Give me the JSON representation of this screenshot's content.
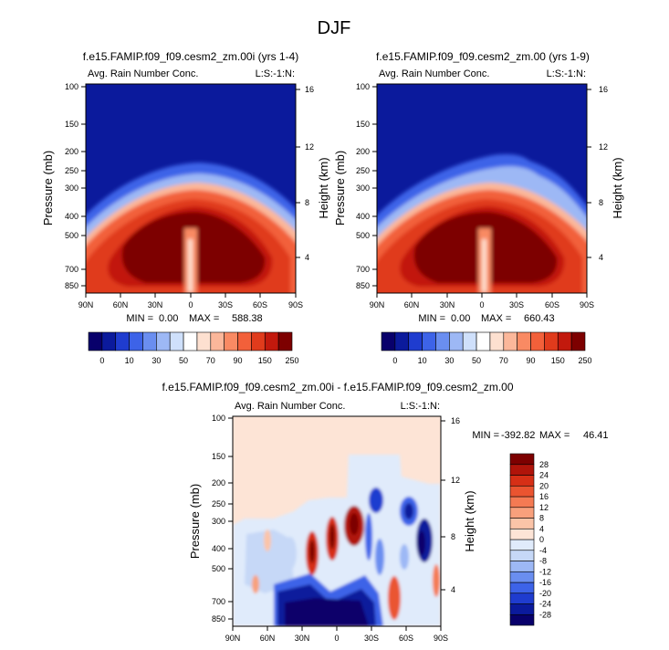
{
  "figure_title": "DJF",
  "colors": {
    "seq_scale": [
      "#08006b",
      "#0b1a9c",
      "#1f3ccf",
      "#3d63e8",
      "#6a8ef0",
      "#9db8f5",
      "#cfe0fb",
      "#ffffff",
      "#fde0d0",
      "#fbb79a",
      "#f98a63",
      "#f2603a",
      "#e03b1c",
      "#c2190d",
      "#7d0000"
    ],
    "diff_scale": [
      "#08006b",
      "#0b1a9c",
      "#1f3ccf",
      "#3d63e8",
      "#6a8ef0",
      "#9db8f5",
      "#c6d8f7",
      "#e0ebfb",
      "#fde4d6",
      "#fbc4a8",
      "#f8a07c",
      "#f47a53",
      "#ea5430",
      "#d62f16",
      "#b0140a",
      "#7d0000"
    ]
  },
  "chart_data": [
    {
      "type": "heatmap",
      "title": "f.e15.FAMIP.f09_f09.cesm2_zm.00i (yrs 1-4)",
      "left_label": "Avg. Rain Number Conc.",
      "right_label": "L:S:-1:N:",
      "ylabel": "Pressure (mb)",
      "ylabel_right": "Height (km)",
      "x_ticks": [
        "90N",
        "60N",
        "30N",
        "0",
        "30S",
        "60S",
        "90S"
      ],
      "y_ticks": [
        "100",
        "150",
        "200",
        "250",
        "300",
        "400",
        "500",
        "700",
        "850"
      ],
      "y_ticks_right": [
        "16",
        "12",
        "8",
        "4"
      ],
      "min_label": "MIN =",
      "min_value": "0.00",
      "max_label": "MAX =",
      "max_value": "588.38",
      "colorbar_labels": [
        "0",
        "10",
        "30",
        "50",
        "70",
        "90",
        "150",
        "250"
      ]
    },
    {
      "type": "heatmap",
      "title": "f.e15.FAMIP.f09_f09.cesm2_zm.00 (yrs 1-9)",
      "left_label": "Avg. Rain Number Conc.",
      "right_label": "L:S:-1:N:",
      "ylabel": "Pressure (mb)",
      "ylabel_right": "Height (km)",
      "x_ticks": [
        "90N",
        "60N",
        "30N",
        "0",
        "30S",
        "60S",
        "90S"
      ],
      "y_ticks": [
        "100",
        "150",
        "200",
        "250",
        "300",
        "400",
        "500",
        "700",
        "850"
      ],
      "y_ticks_right": [
        "16",
        "12",
        "8",
        "4"
      ],
      "min_label": "MIN =",
      "min_value": "0.00",
      "max_label": "MAX =",
      "max_value": "660.43",
      "colorbar_labels": [
        "0",
        "10",
        "30",
        "50",
        "70",
        "90",
        "150",
        "250"
      ]
    },
    {
      "type": "heatmap",
      "title": "f.e15.FAMIP.f09_f09.cesm2_zm.00i - f.e15.FAMIP.f09_f09.cesm2_zm.00",
      "left_label": "Avg. Rain Number Conc.",
      "right_label": "L:S:-1:N:",
      "ylabel": "Pressure (mb)",
      "ylabel_right": "Height (km)",
      "x_ticks": [
        "90N",
        "60N",
        "30N",
        "0",
        "30S",
        "60S",
        "90S"
      ],
      "y_ticks": [
        "100",
        "150",
        "200",
        "250",
        "300",
        "400",
        "500",
        "700",
        "850"
      ],
      "y_ticks_right": [
        "16",
        "12",
        "8",
        "4"
      ],
      "min_label": "MIN =",
      "min_value": "-392.82",
      "max_label": "MAX =",
      "max_value": "46.41",
      "colorbar_labels": [
        "28",
        "24",
        "20",
        "16",
        "12",
        "8",
        "4",
        "0",
        "-4",
        "-8",
        "-12",
        "-16",
        "-20",
        "-24",
        "-28"
      ]
    }
  ]
}
